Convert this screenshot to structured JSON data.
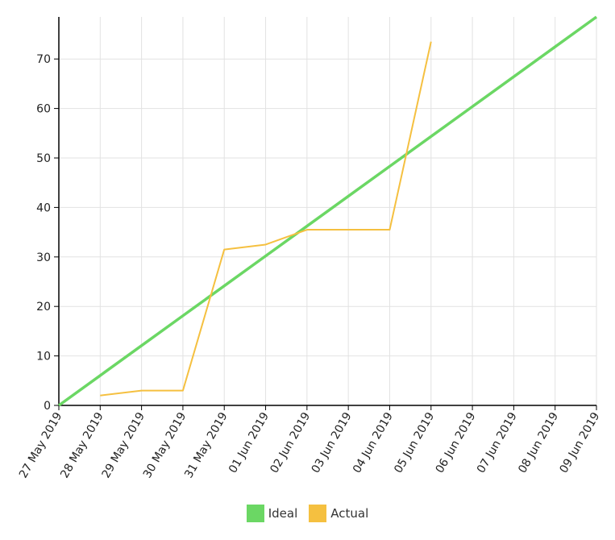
{
  "chart_data": {
    "type": "line",
    "x": [
      "27 May 2019",
      "28 May 2019",
      "29 May 2019",
      "30 May 2019",
      "31 May 2019",
      "01 Jun 2019",
      "02 Jun 2019",
      "03 Jun 2019",
      "04 Jun 2019",
      "05 Jun 2019",
      "06 Jun 2019",
      "07 Jun 2019",
      "08 Jun 2019",
      "09 Jun 2019"
    ],
    "yticks": [
      0,
      10,
      20,
      30,
      40,
      50,
      60,
      70
    ],
    "ylim": [
      0,
      78.5
    ],
    "grid": true,
    "legend_position": "bottom",
    "series": [
      {
        "name": "Ideal",
        "color": "#6bd764",
        "values": [
          0,
          6.04,
          12.08,
          18.12,
          24.15,
          30.19,
          36.23,
          42.27,
          48.31,
          54.35,
          60.38,
          66.42,
          72.46,
          78.5
        ]
      },
      {
        "name": "Actual",
        "color": "#f5c040",
        "values": [
          null,
          2,
          3,
          3,
          31.5,
          32.5,
          35.5,
          35.5,
          35.5,
          73.5,
          null,
          null,
          null,
          null
        ]
      }
    ]
  }
}
